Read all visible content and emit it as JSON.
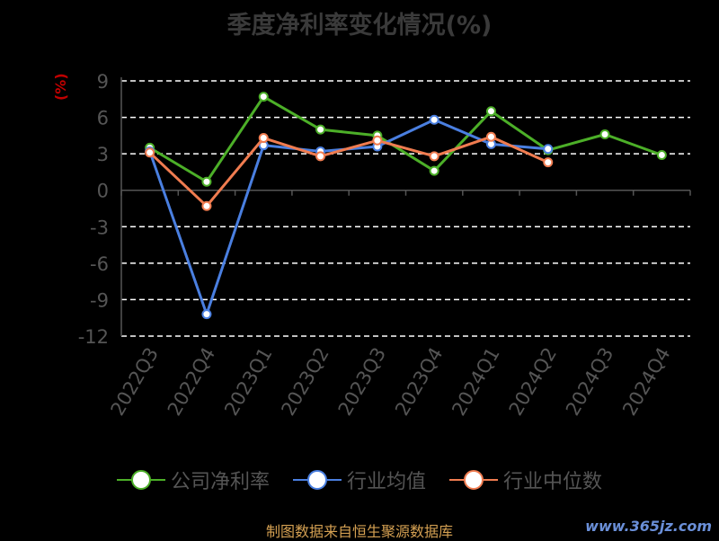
{
  "title": "季度净利率变化情况(%)",
  "unit_label": "(%)",
  "source": "制图数据来自恒生聚源数据库",
  "watermark": "www.365jz.com",
  "colors": {
    "net": "#4caf28",
    "avg": "#4a7fe0",
    "median": "#f07c50",
    "grid": "#ffffff",
    "axis": "#555555"
  },
  "chart_data": {
    "type": "line",
    "title": "季度净利率变化情况(%)",
    "ylabel": "(%)",
    "xlabel": "",
    "ylim": [
      -12,
      9
    ],
    "yticks": [
      9,
      6,
      3,
      0,
      -3,
      -6,
      -9,
      -12
    ],
    "grid": true,
    "legend": "bottom",
    "categories": [
      "2022Q3",
      "2022Q4",
      "2023Q1",
      "2023Q2",
      "2023Q3",
      "2023Q4",
      "2024Q1",
      "2024Q2",
      "2024Q3",
      "2024Q4"
    ],
    "series": [
      {
        "name": "公司净利率",
        "color": "#4caf28",
        "values": [
          3.5,
          0.7,
          7.7,
          5.0,
          4.5,
          1.6,
          6.5,
          3.3,
          4.6,
          2.9
        ]
      },
      {
        "name": "行业均值",
        "color": "#4a7fe0",
        "values": [
          3.2,
          -10.2,
          3.7,
          3.2,
          3.6,
          5.8,
          3.8,
          3.4,
          null,
          null
        ]
      },
      {
        "name": "行业中位数",
        "color": "#f07c50",
        "values": [
          3.1,
          -1.3,
          4.3,
          2.8,
          4.1,
          2.8,
          4.4,
          2.3,
          null,
          null
        ]
      }
    ]
  }
}
